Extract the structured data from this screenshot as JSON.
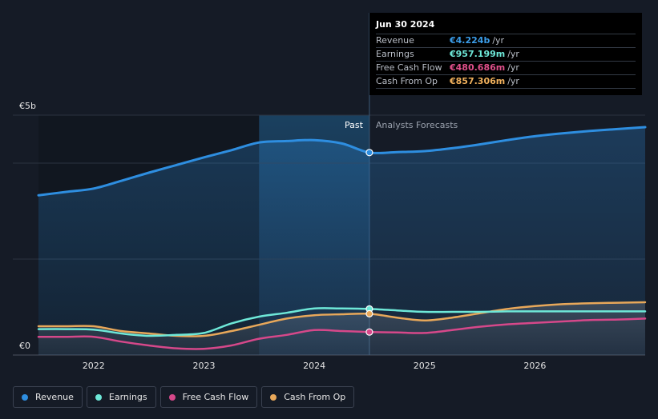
{
  "tooltip": {
    "date": "Jun 30 2024",
    "rows": [
      {
        "label": "Revenue",
        "value": "€4.224b",
        "unit": "/yr",
        "color": "#3b9ce8"
      },
      {
        "label": "Earnings",
        "value": "€957.199m",
        "unit": "/yr",
        "color": "#6ee8d8"
      },
      {
        "label": "Free Cash Flow",
        "value": "€480.686m",
        "unit": "/yr",
        "color": "#e0508a"
      },
      {
        "label": "Cash From Op",
        "value": "€857.306m",
        "unit": "/yr",
        "color": "#f0b05c"
      }
    ]
  },
  "legend": [
    {
      "label": "Revenue",
      "color": "#2e8ee0"
    },
    {
      "label": "Earnings",
      "color": "#6ee8d8"
    },
    {
      "label": "Free Cash Flow",
      "color": "#d6488a"
    },
    {
      "label": "Cash From Op",
      "color": "#e8a85a"
    }
  ],
  "chart_data": {
    "type": "line",
    "ylim": [
      0,
      5
    ],
    "yticks": [
      0,
      1,
      2,
      3,
      4,
      5
    ],
    "ytick_labels": {
      "top": "€5b",
      "bottom": "€0"
    },
    "xlim": [
      2021.5,
      2027.0
    ],
    "xticks": [
      2022,
      2023,
      2024,
      2025,
      2026
    ],
    "xtick_labels": [
      "2022",
      "2023",
      "2024",
      "2025",
      "2026"
    ],
    "past_label": "Past",
    "forecast_label": "Analysts Forecasts",
    "past_start": 2023.5,
    "divider_x": 2024.5,
    "series": [
      {
        "name": "Revenue",
        "color": "#2e8ee0",
        "x": [
          2021.5,
          2021.75,
          2022.0,
          2022.25,
          2022.5,
          2022.75,
          2023.0,
          2023.25,
          2023.5,
          2023.75,
          2024.0,
          2024.25,
          2024.5,
          2024.75,
          2025.0,
          2025.25,
          2025.5,
          2025.75,
          2026.0,
          2026.25,
          2026.5,
          2026.75,
          2027.0
        ],
        "values": [
          3.33,
          3.4,
          3.47,
          3.63,
          3.8,
          3.96,
          4.12,
          4.27,
          4.43,
          4.46,
          4.48,
          4.41,
          4.22,
          4.23,
          4.25,
          4.31,
          4.39,
          4.48,
          4.56,
          4.62,
          4.67,
          4.71,
          4.75
        ]
      },
      {
        "name": "Earnings",
        "color": "#6ee8d8",
        "x": [
          2021.5,
          2021.75,
          2022.0,
          2022.25,
          2022.5,
          2022.75,
          2023.0,
          2023.25,
          2023.5,
          2023.75,
          2024.0,
          2024.25,
          2024.5,
          2024.75,
          2025.0,
          2025.25,
          2025.5,
          2025.75,
          2026.0,
          2026.25,
          2026.5,
          2026.75,
          2027.0
        ],
        "values": [
          0.54,
          0.54,
          0.53,
          0.45,
          0.4,
          0.42,
          0.46,
          0.66,
          0.8,
          0.88,
          0.97,
          0.97,
          0.96,
          0.93,
          0.9,
          0.9,
          0.9,
          0.91,
          0.91,
          0.91,
          0.91,
          0.91,
          0.91
        ]
      },
      {
        "name": "Free Cash Flow",
        "color": "#d6488a",
        "x": [
          2021.5,
          2021.75,
          2022.0,
          2022.25,
          2022.5,
          2022.75,
          2023.0,
          2023.25,
          2023.5,
          2023.75,
          2024.0,
          2024.25,
          2024.5,
          2024.75,
          2025.0,
          2025.25,
          2025.5,
          2025.75,
          2026.0,
          2026.25,
          2026.5,
          2026.75,
          2027.0
        ],
        "values": [
          0.38,
          0.38,
          0.38,
          0.28,
          0.2,
          0.14,
          0.13,
          0.2,
          0.34,
          0.42,
          0.52,
          0.5,
          0.48,
          0.47,
          0.46,
          0.52,
          0.59,
          0.64,
          0.67,
          0.7,
          0.73,
          0.74,
          0.76
        ]
      },
      {
        "name": "Cash From Op",
        "color": "#e8a85a",
        "x": [
          2021.5,
          2021.75,
          2022.0,
          2022.25,
          2022.5,
          2022.75,
          2023.0,
          2023.25,
          2023.5,
          2023.75,
          2024.0,
          2024.25,
          2024.5,
          2024.75,
          2025.0,
          2025.25,
          2025.5,
          2025.75,
          2026.0,
          2026.25,
          2026.5,
          2026.75,
          2027.0
        ],
        "values": [
          0.6,
          0.6,
          0.6,
          0.5,
          0.45,
          0.4,
          0.4,
          0.5,
          0.63,
          0.76,
          0.83,
          0.85,
          0.86,
          0.78,
          0.72,
          0.78,
          0.87,
          0.96,
          1.02,
          1.06,
          1.08,
          1.09,
          1.1
        ]
      }
    ],
    "highlight_x": 2024.5
  }
}
